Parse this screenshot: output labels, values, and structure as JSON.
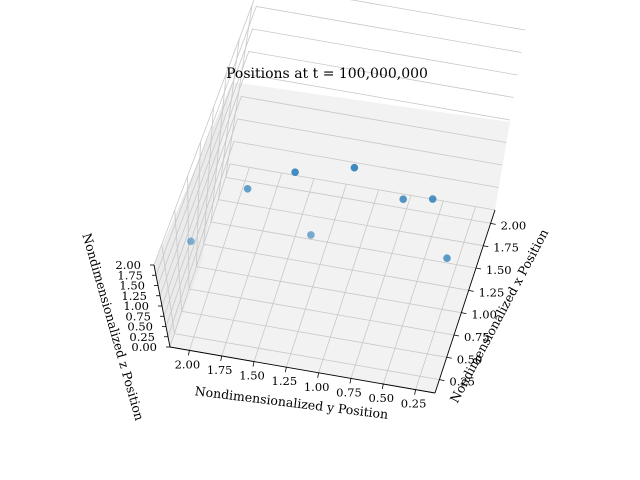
{
  "chart_data": {
    "type": "scatter",
    "title": "Positions at t = 100,000,000",
    "xlabel": "Nondimensionalized x Position",
    "ylabel": "Nondimensionalized y Position",
    "zlabel": "Nondimensionalized z Position",
    "xlim": [
      0.1,
      2.15
    ],
    "ylim": [
      0.1,
      2.15
    ],
    "zlim": [
      0.0,
      2.0
    ],
    "xticks": [
      "0.25",
      "0.50",
      "0.75",
      "1.00",
      "1.25",
      "1.50",
      "1.75",
      "2.00"
    ],
    "yticks": [
      "0.25",
      "0.50",
      "0.75",
      "1.00",
      "1.25",
      "1.50",
      "1.75",
      "2.00"
    ],
    "zticks": [
      "0.00",
      "0.25",
      "0.50",
      "0.75",
      "1.00",
      "1.25",
      "1.50",
      "1.75",
      "2.00"
    ],
    "grid": true,
    "color": "#1f77b4",
    "points": [
      {
        "x": 1.58,
        "y": 1.12,
        "z": 0.92
      },
      {
        "x": 0.37,
        "y": 1.98,
        "z": 1.8
      },
      {
        "x": 0.62,
        "y": 1.15,
        "z": 1.65
      },
      {
        "x": 0.92,
        "y": 1.75,
        "z": 1.55
      },
      {
        "x": 1.35,
        "y": 0.45,
        "z": 1.05
      },
      {
        "x": 1.1,
        "y": 0.25,
        "z": 0.65
      },
      {
        "x": 1.5,
        "y": 1.55,
        "z": 0.85
      },
      {
        "x": 1.25,
        "y": 0.65,
        "z": 1.15
      }
    ]
  }
}
